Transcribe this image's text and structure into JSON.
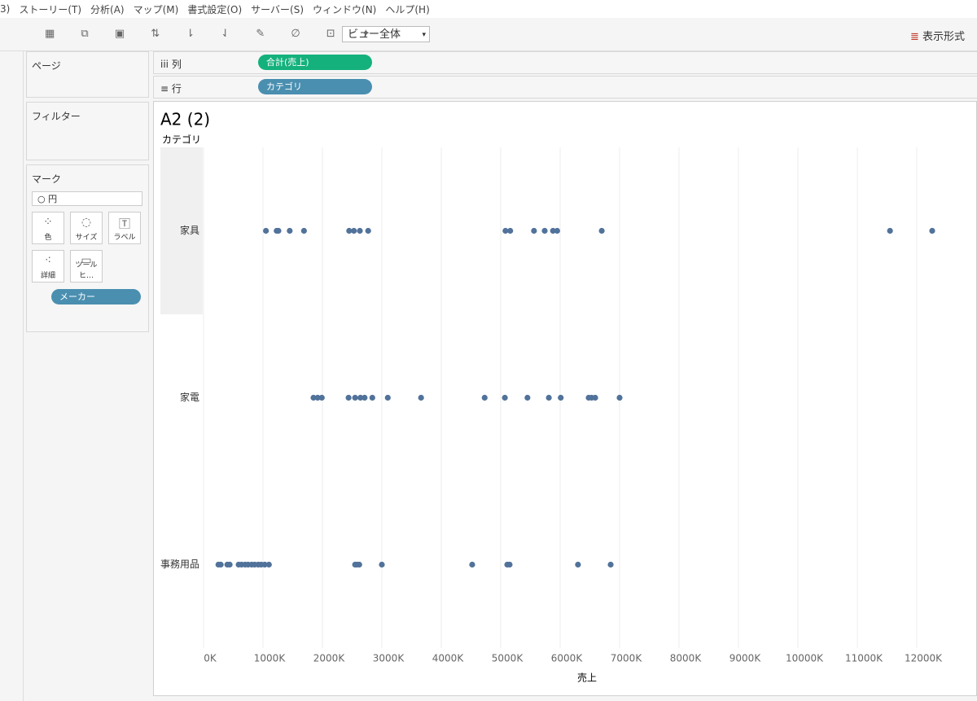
{
  "ui": {
    "menu": [
      "3)",
      "ストーリー(T)",
      "分析(A)",
      "マップ(M)",
      "書式設定(O)",
      "サーバー(S)",
      "ウィンドウ(N)",
      "ヘルプ(H)"
    ],
    "toolbar": {
      "view_dropdown": "ビュー全体",
      "format": "表示形式"
    },
    "panels": {
      "pages": "ページ",
      "filters": "フィルター",
      "marks": {
        "title": "マーク",
        "type": "円",
        "buttons": [
          "色",
          "サイズ",
          "ラベル",
          "詳細",
          "ツールヒ…"
        ],
        "pill": "メーカー"
      }
    },
    "shelves": {
      "columns": {
        "label": "列",
        "pill": "合計(売上)"
      },
      "rows": {
        "label": "行",
        "pill": "カテゴリ"
      }
    }
  },
  "chart_data": {
    "type": "strip",
    "title": "A2 (2)",
    "row_header": "カテゴリ",
    "x_label": "売上",
    "color": "#51729a",
    "grid": true,
    "categories": [
      "家具",
      "家電",
      "事務用品"
    ],
    "values": [
      [
        1050000,
        1230000,
        1260000,
        1450000,
        1690000,
        2450000,
        2530000,
        2630000,
        2770000,
        5080000,
        5160000,
        5560000,
        5740000,
        5880000,
        5950000,
        6700000,
        11550000,
        12260000
      ],
      [
        1850000,
        1920000,
        1990000,
        2440000,
        2550000,
        2640000,
        2710000,
        2840000,
        3100000,
        3660000,
        4730000,
        5070000,
        5450000,
        5810000,
        6010000,
        6480000,
        6530000,
        6590000,
        7000000
      ],
      [
        250000,
        290000,
        400000,
        440000,
        590000,
        640000,
        700000,
        750000,
        810000,
        860000,
        920000,
        970000,
        1030000,
        1100000,
        2550000,
        2580000,
        2620000,
        3000000,
        4520000,
        5110000,
        5150000,
        6300000,
        6850000
      ]
    ],
    "xlim": [
      0,
      13000000
    ],
    "xticks": [
      {
        "value": 0,
        "label": "0K"
      },
      {
        "value": 1000000,
        "label": "1000K"
      },
      {
        "value": 2000000,
        "label": "2000K"
      },
      {
        "value": 3000000,
        "label": "3000K"
      },
      {
        "value": 4000000,
        "label": "4000K"
      },
      {
        "value": 5000000,
        "label": "5000K"
      },
      {
        "value": 6000000,
        "label": "6000K"
      },
      {
        "value": 7000000,
        "label": "7000K"
      },
      {
        "value": 8000000,
        "label": "8000K"
      },
      {
        "value": 9000000,
        "label": "9000K"
      },
      {
        "value": 10000000,
        "label": "10000K"
      },
      {
        "value": 11000000,
        "label": "11000K"
      },
      {
        "value": 12000000,
        "label": "12000K"
      }
    ]
  }
}
